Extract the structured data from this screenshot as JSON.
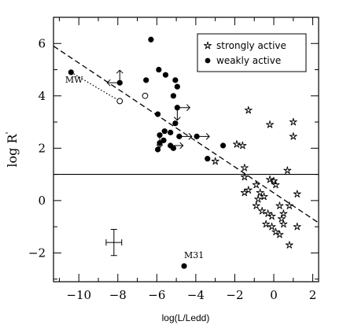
{
  "chart_data": {
    "type": "scatter",
    "xlabel": "log(L/Ledd)",
    "ylabel": "log R",
    "ylabel_superscript": "'",
    "xlim": [
      -11.3,
      2.3
    ],
    "ylim": [
      -3.1,
      7.0
    ],
    "xticks": [
      -10,
      -8,
      -6,
      -4,
      -2,
      0,
      2
    ],
    "xtick_labels": [
      "−10",
      "−8",
      "−6",
      "−4",
      "−2",
      "0",
      "2"
    ],
    "yticks": [
      -2,
      0,
      2,
      4,
      6
    ],
    "ytick_labels": [
      "−2",
      "0",
      "2",
      "4",
      "6"
    ],
    "grid": false,
    "legend_position": "top-right",
    "legend": [
      {
        "marker": "star",
        "label": "strongly active"
      },
      {
        "marker": "dot",
        "label": "weakly active"
      }
    ],
    "reference_lines": {
      "dashed_fit": {
        "x": [
          -11.3,
          2.3
        ],
        "y": [
          5.9,
          -0.85
        ]
      },
      "horizontal": {
        "y": 1.0
      },
      "dotted_mw": {
        "x": [
          -10.4,
          -7.9
        ],
        "y": [
          4.9,
          3.8
        ]
      }
    },
    "annotations": [
      {
        "text": "MW",
        "x": -10.7,
        "y": 4.5
      },
      {
        "text": "M31",
        "x": -4.6,
        "y": -2.2
      }
    ],
    "error_bar": {
      "x": -8.2,
      "y": -1.6,
      "xerr": 0.4,
      "yerr": 0.5
    },
    "series": [
      {
        "name": "weakly active",
        "marker": "dot",
        "points": [
          {
            "x": -10.4,
            "y": 4.9
          },
          {
            "x": -7.9,
            "y": 4.5
          },
          {
            "x": -6.3,
            "y": 6.15
          },
          {
            "x": -6.55,
            "y": 4.6
          },
          {
            "x": -5.9,
            "y": 5.0
          },
          {
            "x": -5.55,
            "y": 4.8
          },
          {
            "x": -5.05,
            "y": 4.6
          },
          {
            "x": -4.95,
            "y": 4.35
          },
          {
            "x": -5.15,
            "y": 4.0
          },
          {
            "x": -4.95,
            "y": 3.55
          },
          {
            "x": -5.95,
            "y": 3.3
          },
          {
            "x": -5.05,
            "y": 2.95
          },
          {
            "x": -5.6,
            "y": 2.65
          },
          {
            "x": -5.85,
            "y": 2.5
          },
          {
            "x": -5.65,
            "y": 2.3
          },
          {
            "x": -5.85,
            "y": 2.2
          },
          {
            "x": -5.3,
            "y": 2.6
          },
          {
            "x": -4.85,
            "y": 2.45
          },
          {
            "x": -5.3,
            "y": 2.1
          },
          {
            "x": -5.15,
            "y": 2.0
          },
          {
            "x": -3.95,
            "y": 2.45
          },
          {
            "x": -5.95,
            "y": 1.95
          },
          {
            "x": -3.4,
            "y": 1.6
          },
          {
            "x": -2.6,
            "y": 2.1
          },
          {
            "x": -4.6,
            "y": -2.5
          }
        ]
      },
      {
        "name": "weakly active (open)",
        "marker": "open-circle",
        "points": [
          {
            "x": -7.9,
            "y": 3.8
          },
          {
            "x": -6.6,
            "y": 4.0
          }
        ]
      },
      {
        "name": "strongly active",
        "marker": "star",
        "points": [
          {
            "x": -3.0,
            "y": 1.5
          },
          {
            "x": -1.3,
            "y": 3.45
          },
          {
            "x": -1.6,
            "y": 2.1
          },
          {
            "x": -1.9,
            "y": 2.15
          },
          {
            "x": -0.2,
            "y": 2.9
          },
          {
            "x": 1.0,
            "y": 3.0
          },
          {
            "x": 1.0,
            "y": 2.45
          },
          {
            "x": 0.7,
            "y": 1.15
          },
          {
            "x": -1.5,
            "y": 1.25
          },
          {
            "x": -1.5,
            "y": 0.9
          },
          {
            "x": -1.3,
            "y": 0.4
          },
          {
            "x": -1.5,
            "y": 0.3
          },
          {
            "x": -0.9,
            "y": 0.6
          },
          {
            "x": -0.7,
            "y": 0.3
          },
          {
            "x": -0.2,
            "y": 0.8
          },
          {
            "x": 0.0,
            "y": 0.75
          },
          {
            "x": 0.1,
            "y": 0.6
          },
          {
            "x": -0.5,
            "y": 0.15
          },
          {
            "x": -0.9,
            "y": -0.2
          },
          {
            "x": -0.6,
            "y": -0.4
          },
          {
            "x": -0.3,
            "y": -0.5
          },
          {
            "x": -0.1,
            "y": -0.6
          },
          {
            "x": 0.3,
            "y": -0.2
          },
          {
            "x": 0.4,
            "y": -0.7
          },
          {
            "x": -0.4,
            "y": -0.9
          },
          {
            "x": -0.1,
            "y": -1.0
          },
          {
            "x": 0.1,
            "y": -1.2
          },
          {
            "x": 0.3,
            "y": -1.3
          },
          {
            "x": 0.5,
            "y": -0.9
          },
          {
            "x": 0.8,
            "y": -1.7
          },
          {
            "x": 1.2,
            "y": -1.0
          },
          {
            "x": 1.2,
            "y": 0.25
          },
          {
            "x": 0.8,
            "y": -0.2
          },
          {
            "x": 0.5,
            "y": -0.5
          },
          {
            "x": -0.8,
            "y": 0.05
          }
        ]
      }
    ],
    "limit_arrows": [
      {
        "x": -7.9,
        "y": 4.5,
        "dir": "up"
      },
      {
        "x": -7.9,
        "y": 4.5,
        "dir": "left"
      },
      {
        "x": -4.95,
        "y": 3.55,
        "dir": "right"
      },
      {
        "x": -4.95,
        "y": 3.55,
        "dir": "down"
      },
      {
        "x": -4.85,
        "y": 2.45,
        "dir": "right"
      },
      {
        "x": -3.95,
        "y": 2.45,
        "dir": "right"
      },
      {
        "x": -5.85,
        "y": 2.5,
        "dir": "down"
      },
      {
        "x": -5.3,
        "y": 2.1,
        "dir": "right"
      }
    ]
  }
}
